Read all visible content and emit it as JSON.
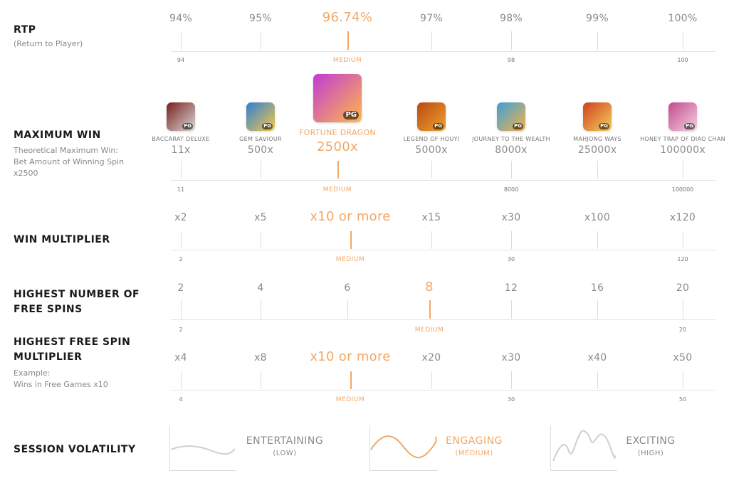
{
  "colors": {
    "highlight": "#f2a766",
    "muted": "#8a8a8a",
    "line": "#dcdcdc"
  },
  "rtp": {
    "title": "RTP",
    "subtitle": "(Return to Player)",
    "values": [
      "94%",
      "95%",
      "96.74%",
      "97%",
      "98%",
      "99%",
      "100%"
    ],
    "highlight_index": 2,
    "highlight_fraction": 0.326,
    "medium_label": "MEDIUM",
    "scale_labels": [
      "94",
      "98",
      "100"
    ],
    "scale_positions": [
      0,
      4,
      6
    ]
  },
  "max_win": {
    "title": "MAXIMUM WIN",
    "subtitle_lines": [
      "Theoretical Maximum Win:",
      "Bet Amount of Winning Spin",
      "x2500"
    ],
    "games": [
      {
        "name": "BACCARAT DELUXE",
        "value": "11x",
        "icon": "baccarat-deluxe-game-icon",
        "colors": [
          "#7a1e1e",
          "#d9d9d9"
        ]
      },
      {
        "name": "GEM SAVIOUR",
        "value": "500x",
        "icon": "gem-saviour-game-icon",
        "colors": [
          "#2f7fd3",
          "#f5c84a"
        ]
      },
      {
        "name": "FORTUNE DRAGON",
        "value": "2500x",
        "icon": "fortune-dragon-game-icon",
        "colors": [
          "#c13bd6",
          "#ffb84a"
        ]
      },
      {
        "name": "LEGEND OF HOUYI",
        "value": "5000x",
        "icon": "legend-of-houyi-game-icon",
        "colors": [
          "#b84a10",
          "#f0a030"
        ]
      },
      {
        "name": "JOURNEY TO THE WEALTH",
        "value": "8000x",
        "icon": "journey-to-the-wealth-game-icon",
        "colors": [
          "#3aa0d8",
          "#f5b24a"
        ]
      },
      {
        "name": "MAHJONG WAYS",
        "value": "25000x",
        "icon": "mahjong-ways-game-icon",
        "colors": [
          "#d04020",
          "#f2d05a"
        ]
      },
      {
        "name": "HONEY TRAP OF DIAO CHAN",
        "value": "100000x",
        "icon": "honey-trap-of-diao-chan-game-icon",
        "colors": [
          "#c24a8a",
          "#f3d2e4"
        ]
      }
    ],
    "pg_badge": "PG",
    "highlight_index": 2,
    "medium_label": "MEDIUM",
    "scale_labels": [
      "11",
      "8000",
      "100000"
    ],
    "scale_positions": [
      0,
      4,
      6
    ]
  },
  "win_multiplier": {
    "title": "WIN MULTIPLIER",
    "values": [
      "x2",
      "x5",
      "x10 or more",
      "x15",
      "x30",
      "x100",
      "x120"
    ],
    "highlight_index": 2,
    "medium_label": "MEDIUM",
    "scale_labels": [
      "2",
      "30",
      "120"
    ],
    "scale_positions": [
      0,
      4,
      6
    ]
  },
  "free_spins": {
    "title_lines": [
      "HIGHEST NUMBER OF",
      "FREE SPINS"
    ],
    "values": [
      "2",
      "4",
      "6",
      "8",
      "12",
      "16",
      "20"
    ],
    "highlight_index": 3,
    "medium_label": "MEDIUM",
    "scale_labels": [
      "2",
      "20"
    ],
    "scale_positions": [
      0,
      6
    ]
  },
  "free_spin_multiplier": {
    "title_lines": [
      "HIGHEST FREE SPIN",
      "MULTIPLIER"
    ],
    "subtitle_lines": [
      "Example:",
      "Wins in Free Games x10"
    ],
    "values": [
      "x4",
      "x8",
      "x10 or more",
      "x20",
      "x30",
      "x40",
      "x50"
    ],
    "highlight_index": 2,
    "medium_label": "MEDIUM",
    "scale_labels": [
      "4",
      "30",
      "50"
    ],
    "scale_positions": [
      0,
      4,
      6
    ]
  },
  "session_volatility": {
    "title": "SESSION VOLATILITY",
    "levels": [
      {
        "name": "ENTERTAINING",
        "sub": "(LOW)",
        "highlight": false
      },
      {
        "name": "ENGAGING",
        "sub": "(MEDIUM)",
        "highlight": true
      },
      {
        "name": "EXCITING",
        "sub": "(HIGH)",
        "highlight": false
      }
    ]
  }
}
